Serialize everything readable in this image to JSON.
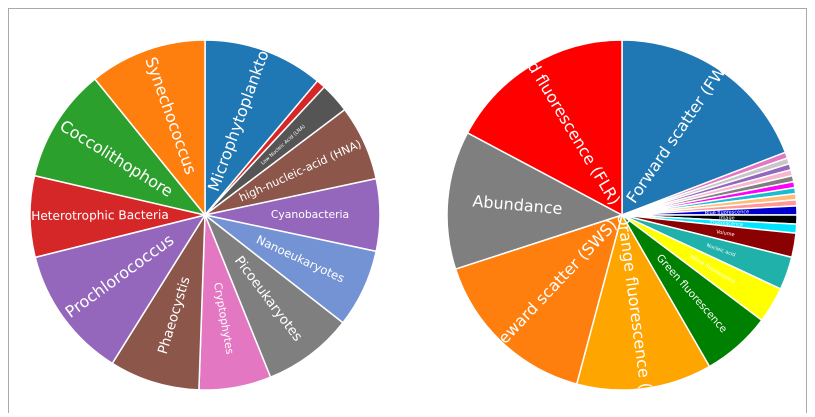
{
  "chart_data": [
    {
      "type": "pie",
      "categories": [
        "Microphytoplankton",
        null,
        "Low Nucleic Acid (LNA)",
        "high-nucleic-acid (HNA)",
        "Cyanobacteria",
        "Nanoeukaryotes",
        "Picoeukaryotes",
        "Cryptophytes",
        "Phaeocystis",
        "Prochlorococcus",
        "Heterotrophic Bacteria",
        "Coccolithophore",
        "Synechococcus"
      ],
      "values": [
        40,
        3,
        10,
        25,
        24,
        26,
        30,
        24,
        30,
        44,
        27,
        38,
        39
      ],
      "colors": [
        "#1f77b4",
        "#d62728",
        "#555555",
        "#8c564b",
        "#9467bd",
        "#7393d4",
        "#7f7f7f",
        "#e377c2",
        "#8c564b",
        "#9467bd",
        "#d62728",
        "#2ca02c",
        "#ff7f0e"
      ]
    },
    {
      "type": "pie",
      "categories": [
        "Forward scatter (FWS)",
        null,
        null,
        null,
        null,
        null,
        null,
        null,
        null,
        null,
        "Blue fluorescence",
        "Image",
        "Fluorescence",
        "Volume",
        "Nucleic acid",
        "Yellow fluorescence",
        "Green fluorescence",
        "Orange fluorescence (FLO)",
        "Sideward scatter (SWS)",
        "Abundance",
        "Red fluorescence (FLR)"
      ],
      "values": [
        69,
        2,
        2,
        2,
        2,
        2,
        2,
        2,
        2,
        2,
        3,
        3,
        3,
        8,
        11,
        12,
        23,
        45,
        57,
        46,
        62
      ],
      "colors": [
        "#1f77b4",
        "#e377c2",
        "#c7c7c7",
        "#9467bd",
        "#f7b6d2",
        "#7f7f7f",
        "#ff00ff",
        "#17becf",
        "#ffbb78",
        "#ff9896",
        "#0000cd",
        "#000000",
        "#00e5ff",
        "#8b0000",
        "#20b2aa",
        "#ffff00",
        "#008000",
        "#ffa500",
        "#ff7f0e",
        "#7f7f7f",
        "#ff0000"
      ]
    }
  ]
}
